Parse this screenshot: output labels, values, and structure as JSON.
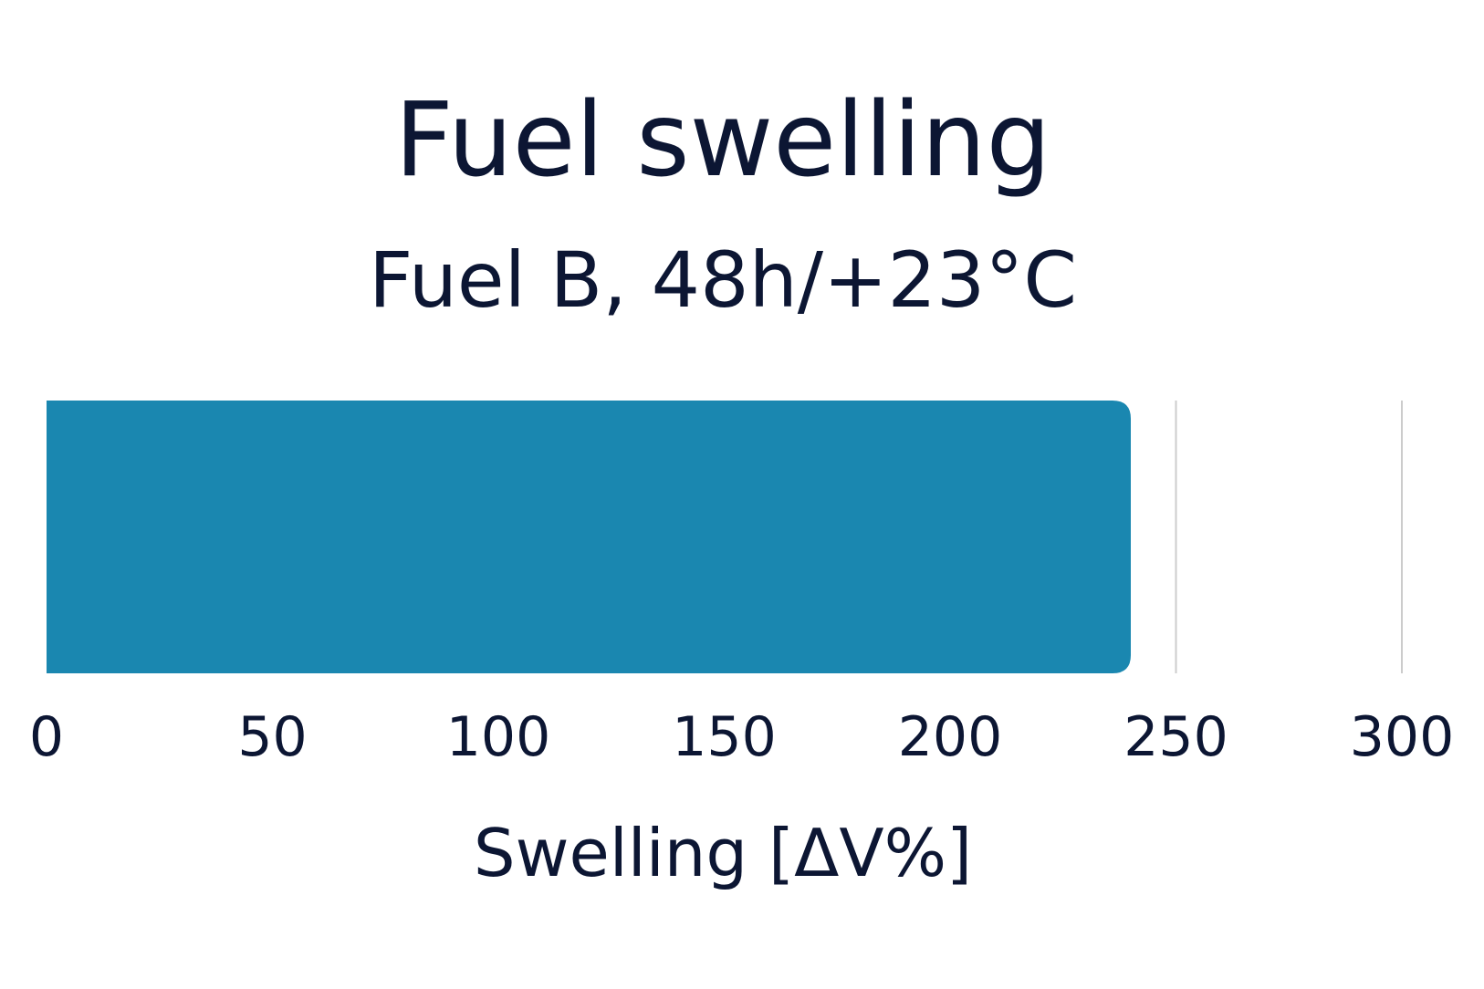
{
  "chart_data": {
    "type": "bar",
    "orientation": "horizontal",
    "title": "Fuel swelling",
    "subtitle": "Fuel B, 48h/+23°C",
    "xlabel": "Swelling [ΔV%]",
    "ylabel": "",
    "categories": [
      ""
    ],
    "values": [
      240
    ],
    "xlim": [
      0,
      300
    ],
    "xticks": [
      0,
      50,
      100,
      150,
      200,
      250,
      300
    ],
    "grid": true,
    "colors": {
      "bar": "#1a87b0",
      "text": "#0c1633",
      "grid": "#cccccc"
    }
  }
}
